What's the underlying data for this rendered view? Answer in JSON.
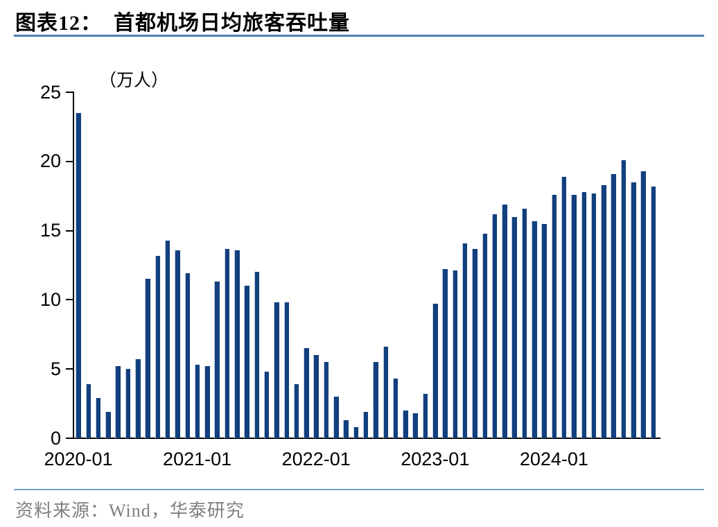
{
  "figure": {
    "title": "图表12：  首都机场日均旅客吞吐量",
    "unit_label": "（万人）",
    "source": "资料来源：Wind，华泰研究"
  },
  "colors": {
    "bar": "#123F7D",
    "bar_edge_highlight": "#b7c6de",
    "rule_top": "#4C7CB5",
    "rule_bottom": "#7CA1CB",
    "axis": "#000000",
    "source_text": "#7f7f7f"
  },
  "chart_data": {
    "type": "bar",
    "title": "首都机场日均旅客吞吐量",
    "unit": "万人",
    "ylabel": "（万人）",
    "ylim": [
      0,
      25
    ],
    "y_ticks": [
      0,
      5,
      10,
      15,
      20,
      25
    ],
    "grid": false,
    "legend": "none",
    "x_tick_indices": [
      0,
      12,
      24,
      36,
      48
    ],
    "x_tick_labels": [
      "2020-01",
      "2021-01",
      "2022-01",
      "2023-01",
      "2024-01"
    ],
    "x": [
      "2020-01",
      "2020-02",
      "2020-03",
      "2020-04",
      "2020-05",
      "2020-06",
      "2020-07",
      "2020-08",
      "2020-09",
      "2020-10",
      "2020-11",
      "2020-12",
      "2021-01",
      "2021-02",
      "2021-03",
      "2021-04",
      "2021-05",
      "2021-06",
      "2021-07",
      "2021-08",
      "2021-09",
      "2021-10",
      "2021-11",
      "2021-12",
      "2022-01",
      "2022-02",
      "2022-03",
      "2022-04",
      "2022-05",
      "2022-06",
      "2022-07",
      "2022-08",
      "2022-09",
      "2022-10",
      "2022-11",
      "2022-12",
      "2023-01",
      "2023-02",
      "2023-03",
      "2023-04",
      "2023-05",
      "2023-06",
      "2023-07",
      "2023-08",
      "2023-09",
      "2023-10",
      "2023-11",
      "2023-12",
      "2024-01",
      "2024-02",
      "2024-03",
      "2024-04",
      "2024-05",
      "2024-06",
      "2024-07",
      "2024-08",
      "2024-09",
      "2024-10",
      "2024-11"
    ],
    "values": [
      23.5,
      3.9,
      2.9,
      1.9,
      5.2,
      5.0,
      5.7,
      11.5,
      13.2,
      14.3,
      13.6,
      11.9,
      5.3,
      5.2,
      11.3,
      13.7,
      13.6,
      11.0,
      12.0,
      4.8,
      9.8,
      9.8,
      3.9,
      6.5,
      6.0,
      5.5,
      3.0,
      1.3,
      0.8,
      1.9,
      5.5,
      6.6,
      4.3,
      2.0,
      1.8,
      3.2,
      9.7,
      12.2,
      12.1,
      14.1,
      13.7,
      14.8,
      16.2,
      16.9,
      16.0,
      16.6,
      15.7,
      15.5,
      17.6,
      18.9,
      17.6,
      17.8,
      17.7,
      18.3,
      19.1,
      20.1,
      18.5,
      19.3,
      18.2
    ]
  }
}
